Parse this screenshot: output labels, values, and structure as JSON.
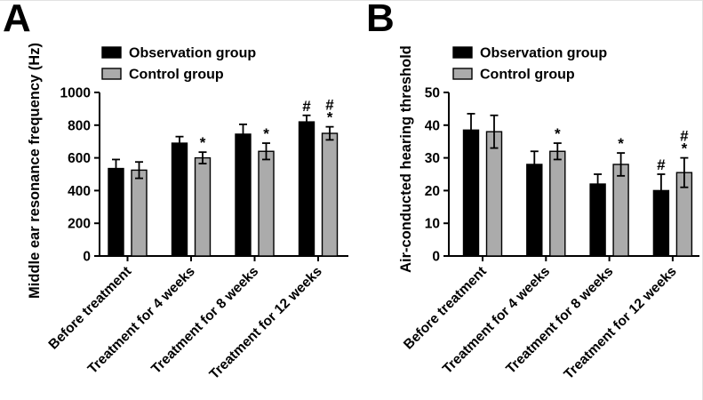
{
  "figure_title": "",
  "panels": [
    {
      "label": "A"
    },
    {
      "label": "B"
    }
  ],
  "colors": {
    "observation": "#000000",
    "control": "#ABABAB",
    "axis": "#000000"
  },
  "chart_data": [
    {
      "panel": "A",
      "type": "bar",
      "title": "",
      "xlabel": "",
      "ylabel": "Middle ear resonance frequency (Hz)",
      "ylim": [
        0,
        1000
      ],
      "ytick_step": 200,
      "ytick_labels": [
        "0",
        "200",
        "400",
        "600",
        "800",
        "1000"
      ],
      "grid": false,
      "legend_position": "top-left",
      "categories": [
        "Before treatment",
        "Treatment for 4 weeks",
        "Treatment for 8 weeks",
        "Treatment for 12 weeks"
      ],
      "series": [
        {
          "name": "Observation group",
          "color": "#000000",
          "values": [
            535,
            690,
            745,
            820
          ],
          "errors": [
            55,
            40,
            60,
            40
          ],
          "annotations": [
            [],
            [],
            [],
            [
              "#"
            ]
          ]
        },
        {
          "name": "Control group",
          "color": "#ABABAB",
          "values": [
            525,
            600,
            640,
            750
          ],
          "errors": [
            50,
            35,
            50,
            40
          ],
          "annotations": [
            [],
            [
              "*"
            ],
            [
              "*"
            ],
            [
              "#",
              "*"
            ]
          ]
        }
      ]
    },
    {
      "panel": "B",
      "type": "bar",
      "title": "",
      "xlabel": "",
      "ylabel": "Air-conducted hearing threshold",
      "ylim": [
        0,
        50
      ],
      "ytick_step": 10,
      "ytick_labels": [
        "0",
        "10",
        "20",
        "30",
        "40",
        "50"
      ],
      "grid": false,
      "legend_position": "top-left",
      "categories": [
        "Before treatment",
        "Treatment for 4 weeks",
        "Treatment for 8 weeks",
        "Treatment for 12 weeks"
      ],
      "series": [
        {
          "name": "Observation group",
          "color": "#000000",
          "values": [
            38.5,
            28,
            22,
            20
          ],
          "errors": [
            5,
            4,
            3,
            5
          ],
          "annotations": [
            [],
            [],
            [],
            [
              "#"
            ]
          ]
        },
        {
          "name": "Control group",
          "color": "#ABABAB",
          "values": [
            38,
            32,
            28,
            25.5
          ],
          "errors": [
            5,
            2.5,
            3.5,
            4.5
          ],
          "annotations": [
            [],
            [
              "*"
            ],
            [
              "*"
            ],
            [
              "#",
              "*"
            ]
          ]
        }
      ]
    }
  ]
}
